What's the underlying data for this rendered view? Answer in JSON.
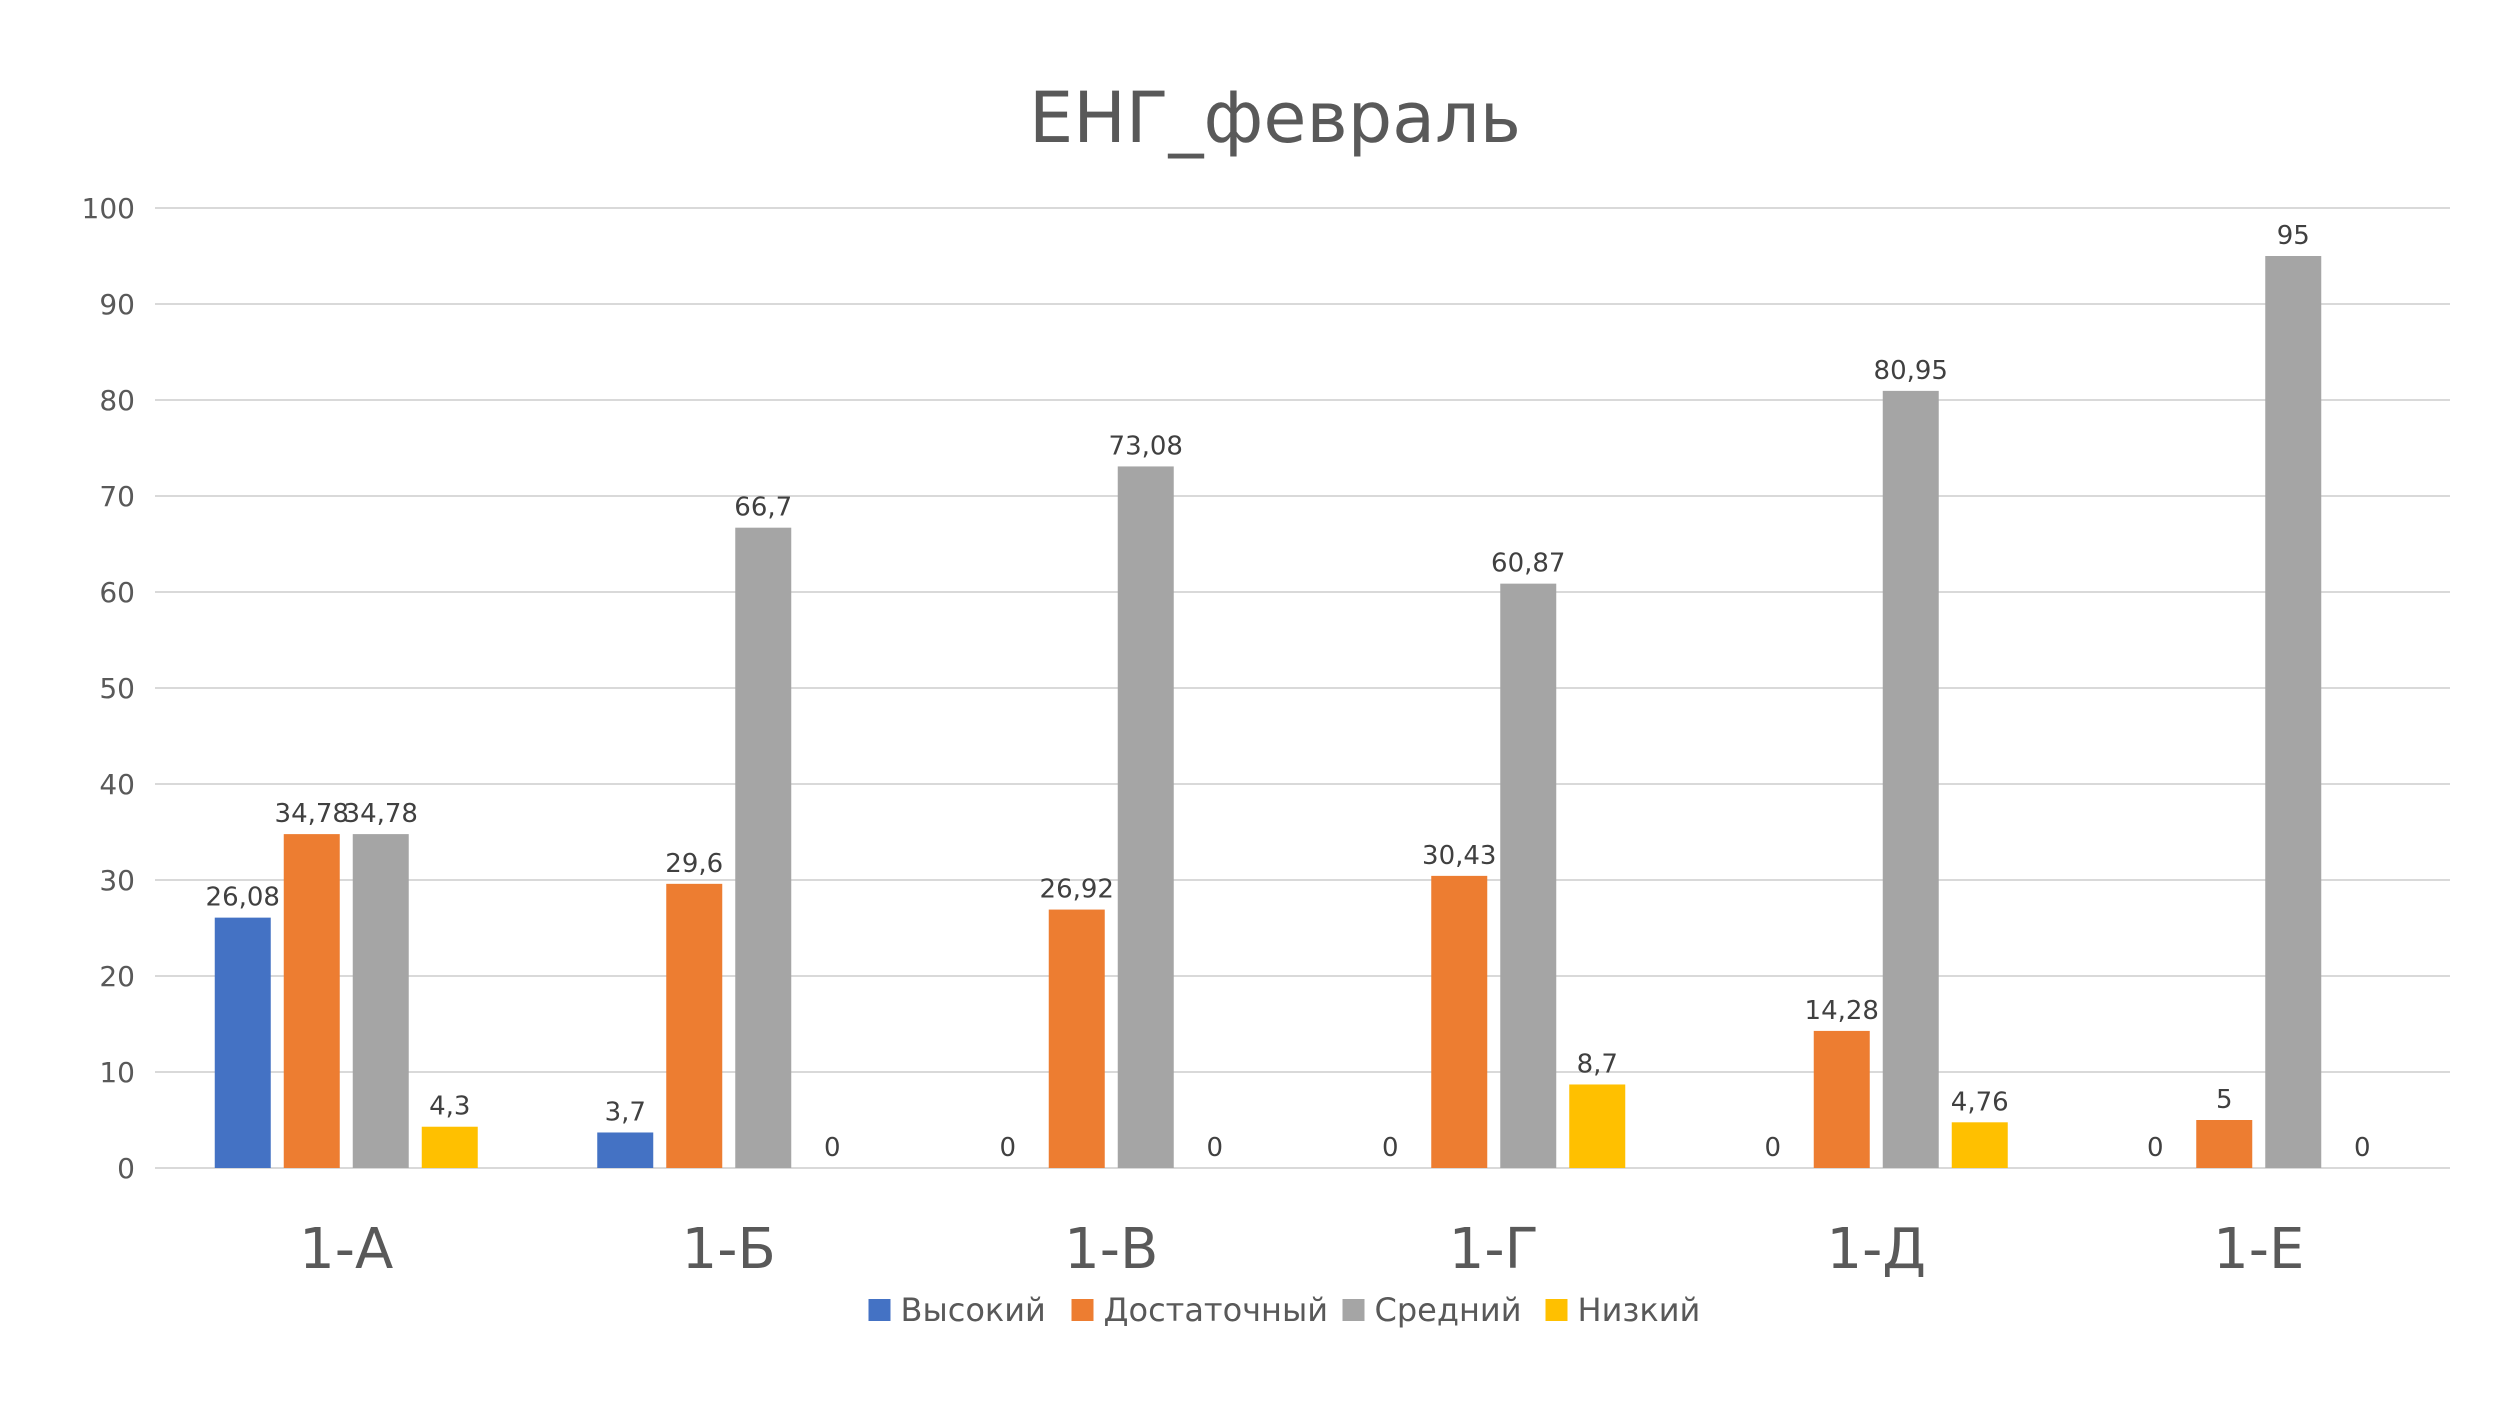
{
  "chart_data": {
    "type": "bar",
    "title": "ЕНГ_февраль",
    "categories": [
      "1-А",
      "1-Б",
      "1-В",
      "1-Г",
      "1-Д",
      "1-Е"
    ],
    "series": [
      {
        "name": "Высокий",
        "color": "#4472c4",
        "values": [
          26.08,
          3.7,
          0,
          0,
          0,
          0
        ],
        "labels": [
          "26,08",
          "3,7",
          "0",
          "0",
          "0",
          "0"
        ]
      },
      {
        "name": "Достаточный",
        "color": "#ed7d31",
        "values": [
          34.78,
          29.6,
          26.92,
          30.43,
          14.28,
          5
        ],
        "labels": [
          "34,78",
          "29,6",
          "26,92",
          "30,43",
          "14,28",
          "5"
        ]
      },
      {
        "name": "Средний",
        "color": "#a5a5a5",
        "values": [
          34.78,
          66.7,
          73.08,
          60.87,
          80.95,
          95
        ],
        "labels": [
          "34,78",
          "66,7",
          "73,08",
          "60,87",
          "80,95",
          "95"
        ]
      },
      {
        "name": "Низкий",
        "color": "#ffc000",
        "values": [
          4.3,
          0,
          0,
          8.7,
          4.76,
          0
        ],
        "labels": [
          "4,3",
          "0",
          "0",
          "8,7",
          "4,76",
          "0"
        ]
      }
    ],
    "y_ticks": [
      "0",
      "10",
      "20",
      "30",
      "40",
      "50",
      "60",
      "70",
      "80",
      "90",
      "100"
    ],
    "ylim": [
      0,
      100
    ],
    "grid": true,
    "legend_position": "bottom"
  }
}
